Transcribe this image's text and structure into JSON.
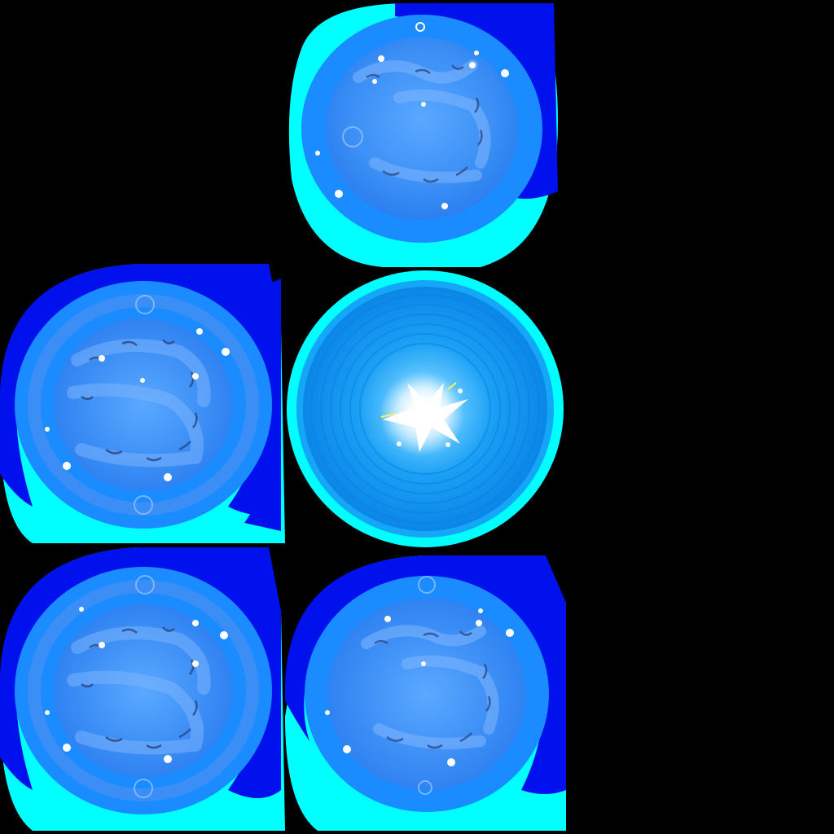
{
  "sheet": {
    "description_visible_text": "",
    "background": "#000000",
    "frame_count": 5,
    "colors": {
      "cyan": "#00ffff",
      "deep_blue": "#0011ee",
      "ring_blue": "#1a8cff",
      "inner_blue": "#3a8ef5",
      "glow_white": "#ffffff",
      "spark_yellow": "#ffee66"
    }
  },
  "frames": [
    {
      "id": "frame-a",
      "variant": "swirl-small",
      "icon": "blue-orb-swirl-icon"
    },
    {
      "id": "frame-b",
      "variant": "swirl-large",
      "icon": "blue-orb-swirl-icon"
    },
    {
      "id": "frame-c",
      "variant": "burst-core",
      "icon": "blue-orb-burst-icon"
    },
    {
      "id": "frame-d",
      "variant": "swirl-large",
      "icon": "blue-orb-swirl-icon"
    },
    {
      "id": "frame-e",
      "variant": "swirl-small",
      "icon": "blue-orb-swirl-icon"
    }
  ]
}
